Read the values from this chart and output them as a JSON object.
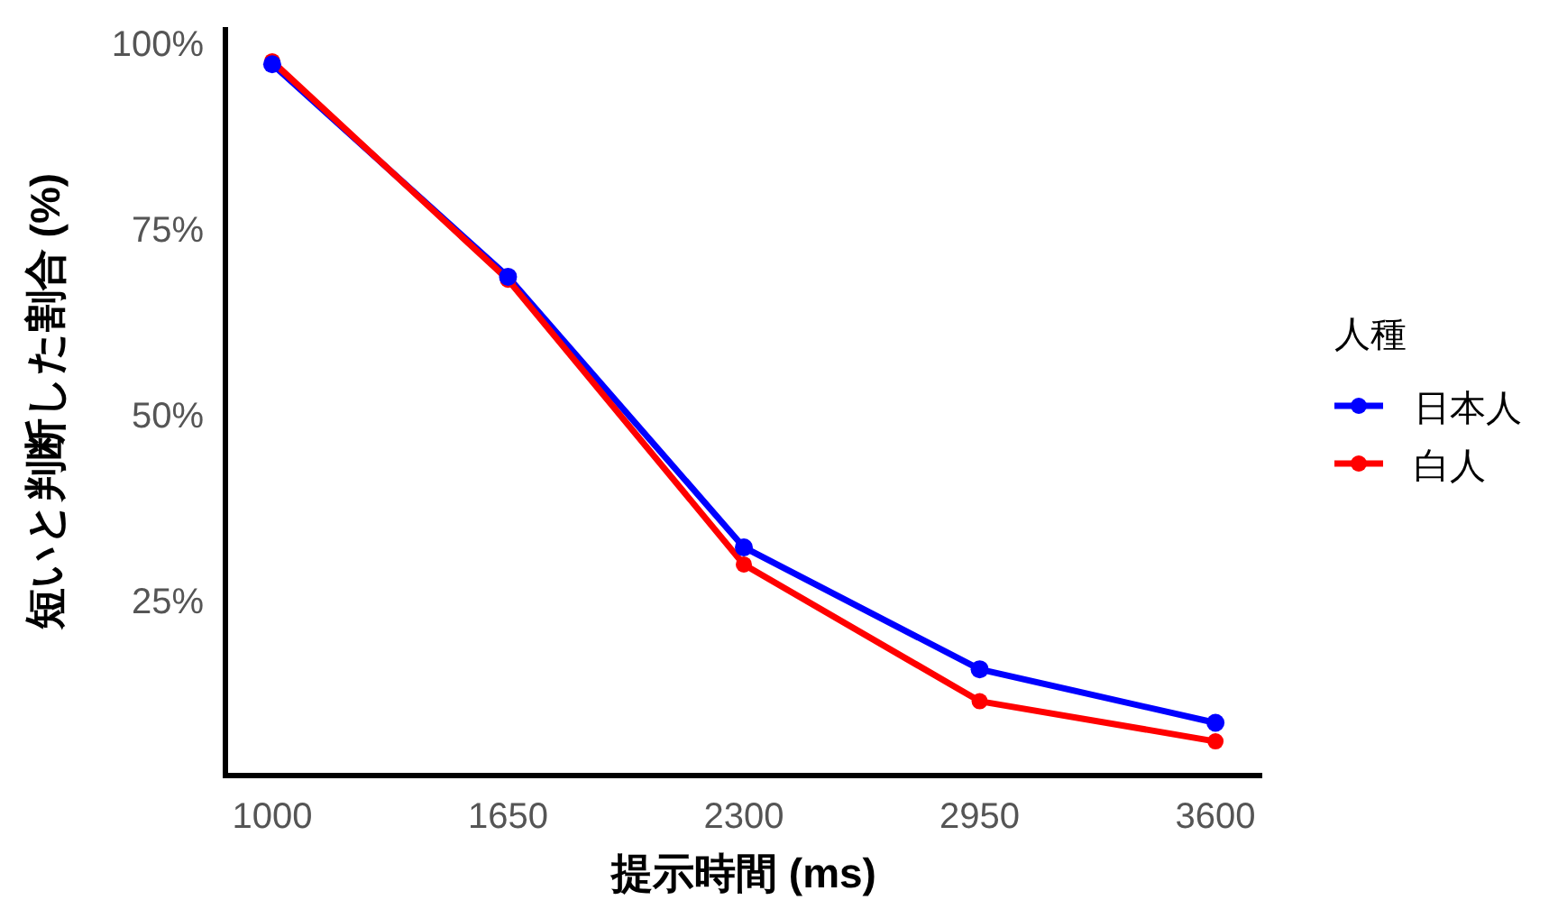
{
  "chart_data": {
    "type": "line",
    "xlabel": "提示時間 (ms)",
    "ylabel": "短いと判断した割合 (%)",
    "legend_title": "人種",
    "x": [
      1000,
      1650,
      2300,
      2950,
      3600
    ],
    "series": [
      {
        "name": "日本人",
        "color": "#0000ff",
        "values": [
          97.2,
          68.6,
          32.2,
          15.8,
          8.6
        ]
      },
      {
        "name": "白人",
        "color": "#ff0000",
        "values": [
          97.6,
          68.2,
          29.9,
          11.5,
          6.1
        ]
      }
    ],
    "xlim": [
      871,
      3729
    ],
    "ylim": [
      1.5,
      102.2
    ],
    "xticks": [
      1000,
      1650,
      2300,
      2950,
      3600
    ],
    "yticks": [
      {
        "value": 25,
        "label": "25%"
      },
      {
        "value": 50,
        "label": "50%"
      },
      {
        "value": 75,
        "label": "75%"
      },
      {
        "value": 100,
        "label": "100%"
      }
    ],
    "grid": false,
    "legend": "right",
    "marker": "circle",
    "line_style": "solid"
  }
}
